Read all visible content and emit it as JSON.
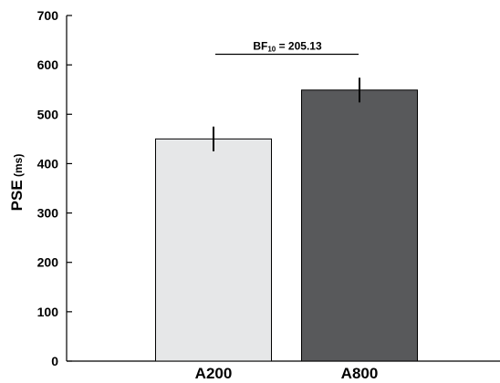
{
  "chart_data": {
    "type": "bar",
    "categories": [
      "A200",
      "A800"
    ],
    "values": [
      450,
      549
    ],
    "errors": [
      25,
      25
    ],
    "bar_colors": [
      "#e6e7e8",
      "#58595b"
    ],
    "edge_color": "#000000",
    "ylabel": "PSE",
    "ylabel_unit": "(ms)",
    "ylim": [
      0,
      700
    ],
    "yticks": [
      0,
      100,
      200,
      300,
      400,
      500,
      600,
      700
    ],
    "grid": false,
    "legend": null,
    "annotation": {
      "label_main": "BF",
      "label_sub": "10",
      "label_rest": " = 205.13",
      "value_y": 640,
      "spans": [
        "A200",
        "A800"
      ]
    }
  }
}
